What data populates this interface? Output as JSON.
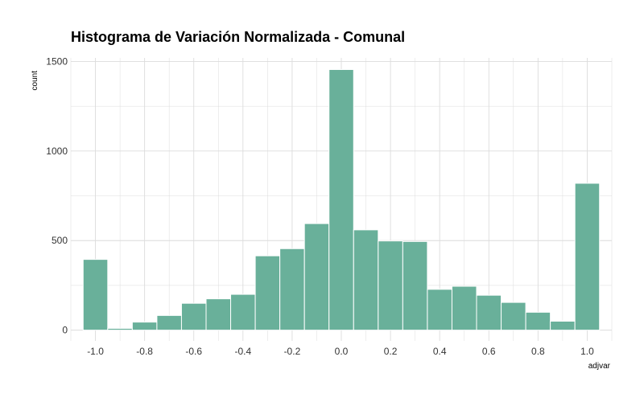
{
  "chart_data": {
    "type": "bar",
    "title": "Histograma de Variación Normalizada - Comunal",
    "xlabel": "adjvar",
    "ylabel": "count",
    "bin_width": 0.1,
    "bins": [
      {
        "x": -1.0,
        "count": 395
      },
      {
        "x": -0.9,
        "count": 10
      },
      {
        "x": -0.8,
        "count": 45
      },
      {
        "x": -0.7,
        "count": 82
      },
      {
        "x": -0.6,
        "count": 150
      },
      {
        "x": -0.5,
        "count": 175
      },
      {
        "x": -0.4,
        "count": 200
      },
      {
        "x": -0.3,
        "count": 415
      },
      {
        "x": -0.2,
        "count": 455
      },
      {
        "x": -0.1,
        "count": 595
      },
      {
        "x": 0.0,
        "count": 1455
      },
      {
        "x": 0.1,
        "count": 560
      },
      {
        "x": 0.2,
        "count": 498
      },
      {
        "x": 0.3,
        "count": 495
      },
      {
        "x": 0.4,
        "count": 228
      },
      {
        "x": 0.5,
        "count": 245
      },
      {
        "x": 0.6,
        "count": 195
      },
      {
        "x": 0.7,
        "count": 155
      },
      {
        "x": 0.8,
        "count": 100
      },
      {
        "x": 0.9,
        "count": 50
      },
      {
        "x": 1.0,
        "count": 820
      }
    ],
    "x_ticks": [
      "-1.0",
      "-0.8",
      "-0.6",
      "-0.4",
      "-0.2",
      "0.0",
      "0.2",
      "0.4",
      "0.6",
      "0.8",
      "1.0"
    ],
    "y_ticks": [
      "0",
      "500",
      "1000",
      "1500"
    ],
    "xlim": [
      -1.1,
      1.1
    ],
    "ylim": [
      -60,
      1520
    ],
    "grid": true,
    "colors": {
      "fill": "#69b09a",
      "stroke": "#ffffff",
      "grid": "#dcdcdc"
    }
  }
}
